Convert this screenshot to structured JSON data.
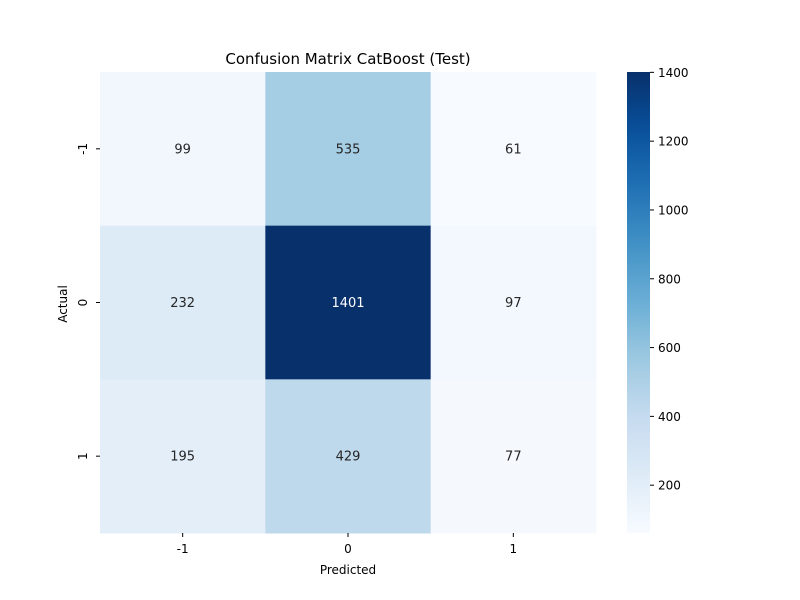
{
  "chart_data": {
    "type": "heatmap",
    "title": "Confusion Matrix CatBoost (Test)",
    "xlabel": "Predicted",
    "ylabel": "Actual",
    "x_categories": [
      "-1",
      "0",
      "1"
    ],
    "y_categories": [
      "-1",
      "0",
      "1"
    ],
    "values": [
      [
        99,
        535,
        61
      ],
      [
        232,
        1401,
        97
      ],
      [
        195,
        429,
        77
      ]
    ],
    "value_labels": [
      [
        "99",
        "535",
        "61"
      ],
      [
        "232",
        "1401",
        "97"
      ],
      [
        "195",
        "429",
        "77"
      ]
    ],
    "colormap": "Blues",
    "colorbar": {
      "range": [
        61,
        1401
      ],
      "ticks": [
        200,
        400,
        600,
        800,
        1000,
        1200,
        1400
      ],
      "tick_labels": [
        "200",
        "400",
        "600",
        "800",
        "1000",
        "1200",
        "1400"
      ]
    },
    "colors": {
      "low": "#f7fbff",
      "high": "#08306b",
      "text_dark": "#262626",
      "text_light": "#ffffff"
    },
    "grid": false,
    "legend": "colorbar-right"
  }
}
